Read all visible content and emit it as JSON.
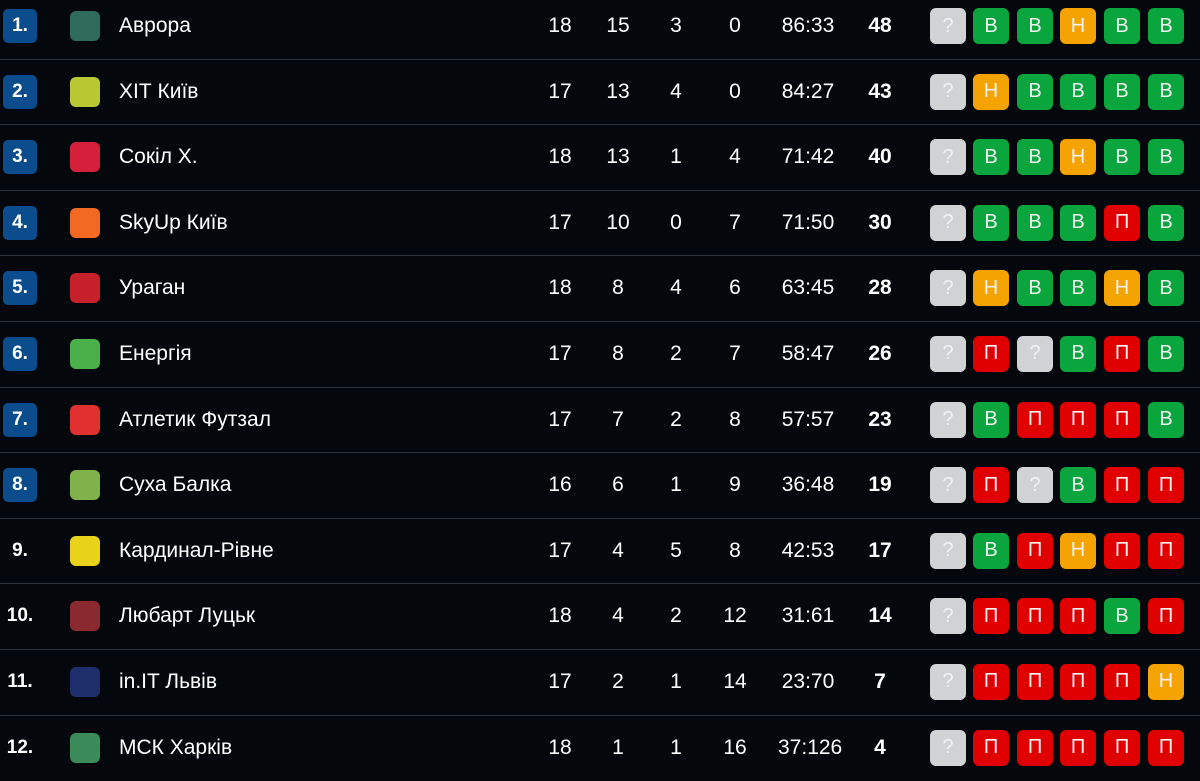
{
  "colors": {
    "W": "#0aa63d",
    "D": "#f5a300",
    "L": "#e00000",
    "?": "#d0d2d4",
    "rank_badge": "#0b4d8c"
  },
  "rows": [
    {
      "rank": "1.",
      "team": "Аврора",
      "logo": "#2f6a5a",
      "p": "18",
      "w": "15",
      "d": "3",
      "l": "0",
      "goals": "86:33",
      "pts": "48",
      "form": [
        "?",
        "В",
        "В",
        "Н",
        "В",
        "В"
      ]
    },
    {
      "rank": "2.",
      "team": "ХІТ Київ",
      "logo": "#b7c832",
      "p": "17",
      "w": "13",
      "d": "4",
      "l": "0",
      "goals": "84:27",
      "pts": "43",
      "form": [
        "?",
        "Н",
        "В",
        "В",
        "В",
        "В"
      ]
    },
    {
      "rank": "3.",
      "team": "Сокіл Х.",
      "logo": "#d61f3a",
      "p": "18",
      "w": "13",
      "d": "1",
      "l": "4",
      "goals": "71:42",
      "pts": "40",
      "form": [
        "?",
        "В",
        "В",
        "Н",
        "В",
        "В"
      ]
    },
    {
      "rank": "4.",
      "team": "SkyUp Київ",
      "logo": "#f26a21",
      "p": "17",
      "w": "10",
      "d": "0",
      "l": "7",
      "goals": "71:50",
      "pts": "30",
      "form": [
        "?",
        "В",
        "В",
        "В",
        "П",
        "В"
      ]
    },
    {
      "rank": "5.",
      "team": "Ураган",
      "logo": "#c8202a",
      "p": "18",
      "w": "8",
      "d": "4",
      "l": "6",
      "goals": "63:45",
      "pts": "28",
      "form": [
        "?",
        "Н",
        "В",
        "В",
        "Н",
        "В"
      ]
    },
    {
      "rank": "6.",
      "team": "Енергія",
      "logo": "#4bb04a",
      "p": "17",
      "w": "8",
      "d": "2",
      "l": "7",
      "goals": "58:47",
      "pts": "26",
      "form": [
        "?",
        "П",
        "?",
        "В",
        "П",
        "В"
      ]
    },
    {
      "rank": "7.",
      "team": "Атлетик Футзал",
      "logo": "#e03030",
      "p": "17",
      "w": "7",
      "d": "2",
      "l": "8",
      "goals": "57:57",
      "pts": "23",
      "form": [
        "?",
        "В",
        "П",
        "П",
        "П",
        "В"
      ]
    },
    {
      "rank": "8.",
      "team": "Суха Балка",
      "logo": "#7fb24a",
      "p": "16",
      "w": "6",
      "d": "1",
      "l": "9",
      "goals": "36:48",
      "pts": "19",
      "form": [
        "?",
        "П",
        "?",
        "В",
        "П",
        "П"
      ]
    },
    {
      "rank": "9.",
      "team": "Кардинал-Рівне",
      "logo": "#e8d21a",
      "p": "17",
      "w": "4",
      "d": "5",
      "l": "8",
      "goals": "42:53",
      "pts": "17",
      "form": [
        "?",
        "В",
        "П",
        "Н",
        "П",
        "П"
      ]
    },
    {
      "rank": "10.",
      "team": "Любарт Луцьк",
      "logo": "#8a2a30",
      "p": "18",
      "w": "4",
      "d": "2",
      "l": "12",
      "goals": "31:61",
      "pts": "14",
      "form": [
        "?",
        "П",
        "П",
        "П",
        "В",
        "П"
      ]
    },
    {
      "rank": "11.",
      "team": "in.IT Львів",
      "logo": "#1d2f6a",
      "p": "17",
      "w": "2",
      "d": "1",
      "l": "14",
      "goals": "23:70",
      "pts": "7",
      "form": [
        "?",
        "П",
        "П",
        "П",
        "П",
        "Н"
      ]
    },
    {
      "rank": "12.",
      "team": "МСК Харків",
      "logo": "#3a8a5a",
      "p": "18",
      "w": "1",
      "d": "1",
      "l": "16",
      "goals": "37:126",
      "pts": "4",
      "form": [
        "?",
        "П",
        "П",
        "П",
        "П",
        "П"
      ]
    }
  ]
}
